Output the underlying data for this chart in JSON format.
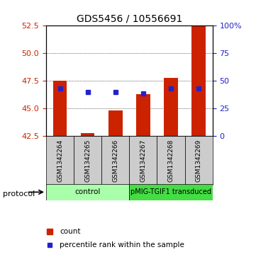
{
  "title": "GDS5456 / 10556691",
  "samples": [
    "GSM1342264",
    "GSM1342265",
    "GSM1342266",
    "GSM1342267",
    "GSM1342268",
    "GSM1342269"
  ],
  "bar_bottoms": [
    42.5,
    42.5,
    42.5,
    42.5,
    42.5,
    42.5
  ],
  "bar_tops": [
    47.5,
    42.8,
    44.8,
    46.3,
    47.8,
    52.5
  ],
  "blue_y": [
    46.8,
    46.5,
    46.5,
    46.4,
    46.8,
    46.8
  ],
  "ylim": [
    42.5,
    52.5
  ],
  "left_yticks": [
    42.5,
    45.0,
    47.5,
    50.0,
    52.5
  ],
  "right_yticks": [
    0,
    25,
    50,
    75,
    100
  ],
  "bar_color": "#cc2200",
  "blue_color": "#2222cc",
  "sample_bg_color": "#cccccc",
  "protocol_groups": [
    {
      "label": "control",
      "indices": [
        0,
        1,
        2
      ],
      "color": "#aaffaa"
    },
    {
      "label": "pMIG-TGIF1 transduced",
      "indices": [
        3,
        4,
        5
      ],
      "color": "#44dd44"
    }
  ],
  "legend_items": [
    "count",
    "percentile rank within the sample"
  ],
  "ytick_color_left": "#cc2200",
  "ytick_color_right": "#2222cc",
  "grid_yvals": [
    45.0,
    47.5,
    50.0
  ]
}
